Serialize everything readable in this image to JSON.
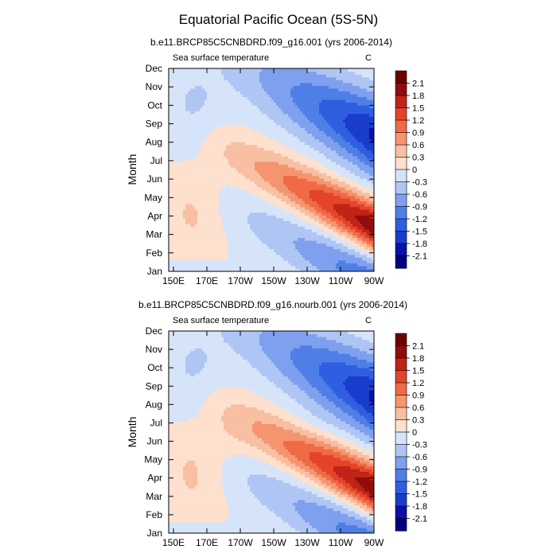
{
  "title": "Equatorial Pacific Ocean (5S-5N)",
  "chart_data": {
    "type": "heatmap",
    "x_tick_labels": [
      "150E",
      "170E",
      "170W",
      "150W",
      "130W",
      "110W",
      "90W"
    ],
    "y_tick_labels": [
      "Jan",
      "Feb",
      "Mar",
      "Apr",
      "May",
      "Jun",
      "Jul",
      "Aug",
      "Sep",
      "Oct",
      "Nov",
      "Dec"
    ],
    "ylabel": "Month",
    "units": "C",
    "variable_label": "Sea surface temperature",
    "colorbar_labels": [
      "2.1",
      "1.8",
      "1.5",
      "1.2",
      "0.9",
      "0.6",
      "0.3",
      "0",
      "-0.3",
      "-0.6",
      "-0.9",
      "-1.2",
      "-1.5",
      "-1.8",
      "-2.1"
    ],
    "contour_levels": [
      -2.1,
      -1.8,
      -1.5,
      -1.2,
      -0.9,
      -0.6,
      -0.3,
      0,
      0.3,
      0.6,
      0.9,
      1.2,
      1.5,
      1.8,
      2.1
    ],
    "colors": [
      "#000080",
      "#0a10a8",
      "#1a3ccc",
      "#2f5fe0",
      "#4f7fe6",
      "#7ea0ee",
      "#afc6f4",
      "#d6e4f9",
      "#fde0cd",
      "#f8bfa2",
      "#f49570",
      "#ef6a45",
      "#e4442a",
      "#c02416",
      "#900d0c",
      "#6e0000"
    ],
    "panels": [
      {
        "subtitle": "b.e11.BRCP85C5CNBDRD.f09_g16.001 (yrs 2006-2014)"
      },
      {
        "subtitle": "b.e11.BRCP85C5CNBDRD.f09_g16.nourb.001 (yrs 2006-2014)"
      }
    ]
  }
}
